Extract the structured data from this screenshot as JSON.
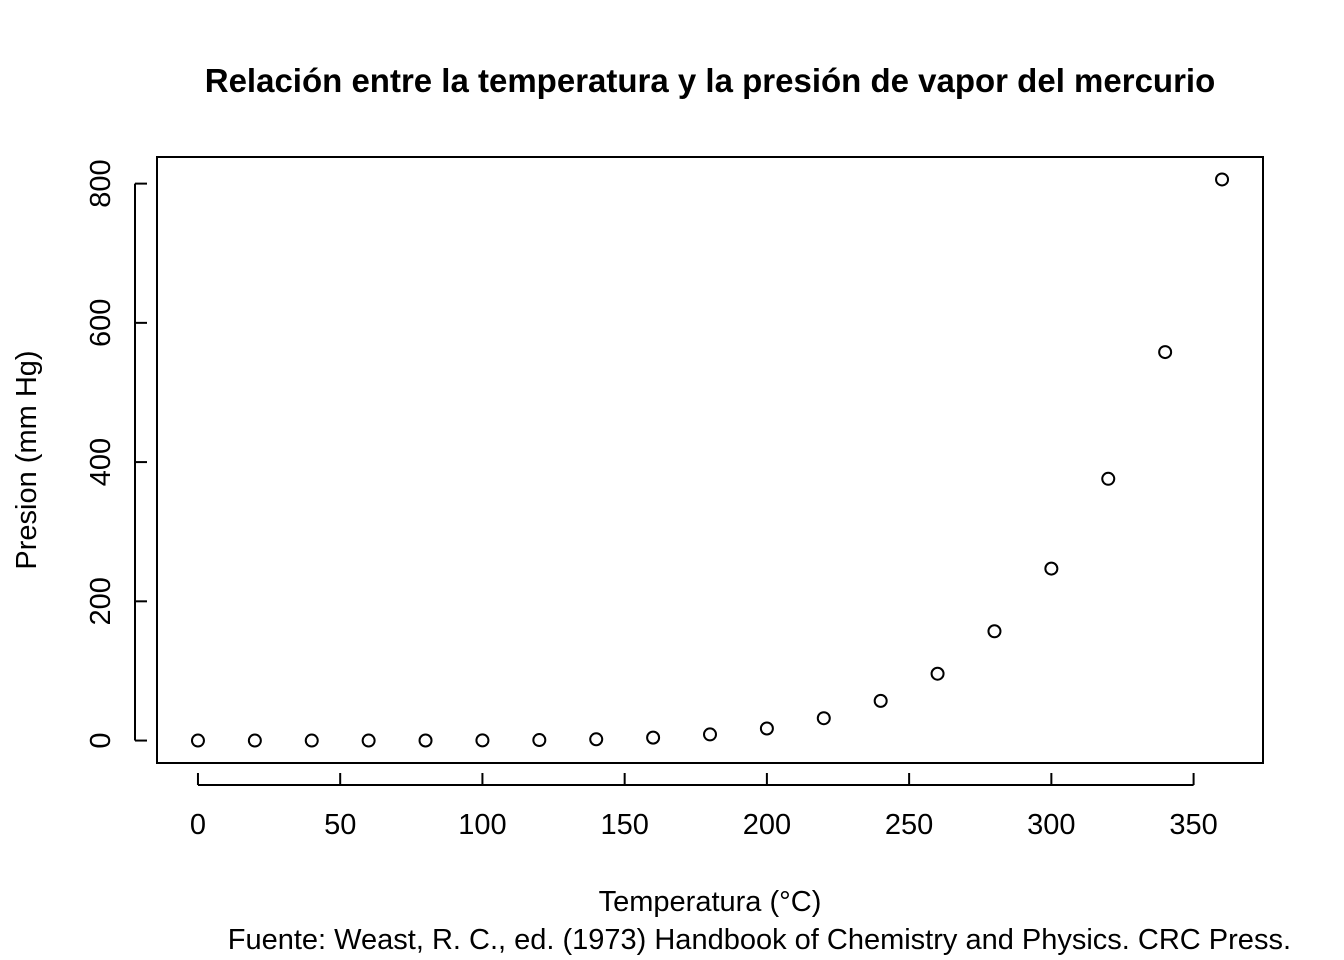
{
  "chart_data": {
    "type": "scatter",
    "title": "Relación entre la temperatura y la presión de vapor del mercurio",
    "xlabel": "Temperatura (°C)",
    "ylabel": "Presion (mm Hg)",
    "caption": "Fuente: Weast, R. C., ed. (1973) Handbook of Chemistry and Physics. CRC Press.",
    "x": [
      0,
      20,
      40,
      60,
      80,
      100,
      120,
      140,
      160,
      180,
      200,
      220,
      240,
      260,
      280,
      300,
      320,
      340,
      360
    ],
    "y": [
      0.0002,
      0.0012,
      0.006,
      0.03,
      0.09,
      0.27,
      0.75,
      1.85,
      4.2,
      8.8,
      17.3,
      32.1,
      57.0,
      96.0,
      157.0,
      247.0,
      376.0,
      558.0,
      806.0
    ],
    "xlim": [
      -14.4,
      374.4
    ],
    "ylim": [
      -32.24,
      838.24
    ],
    "xticks": [
      0,
      50,
      100,
      150,
      200,
      250,
      300,
      350
    ],
    "yticks": [
      0,
      200,
      400,
      600,
      800
    ],
    "grid": false,
    "marker": "open-circle"
  }
}
